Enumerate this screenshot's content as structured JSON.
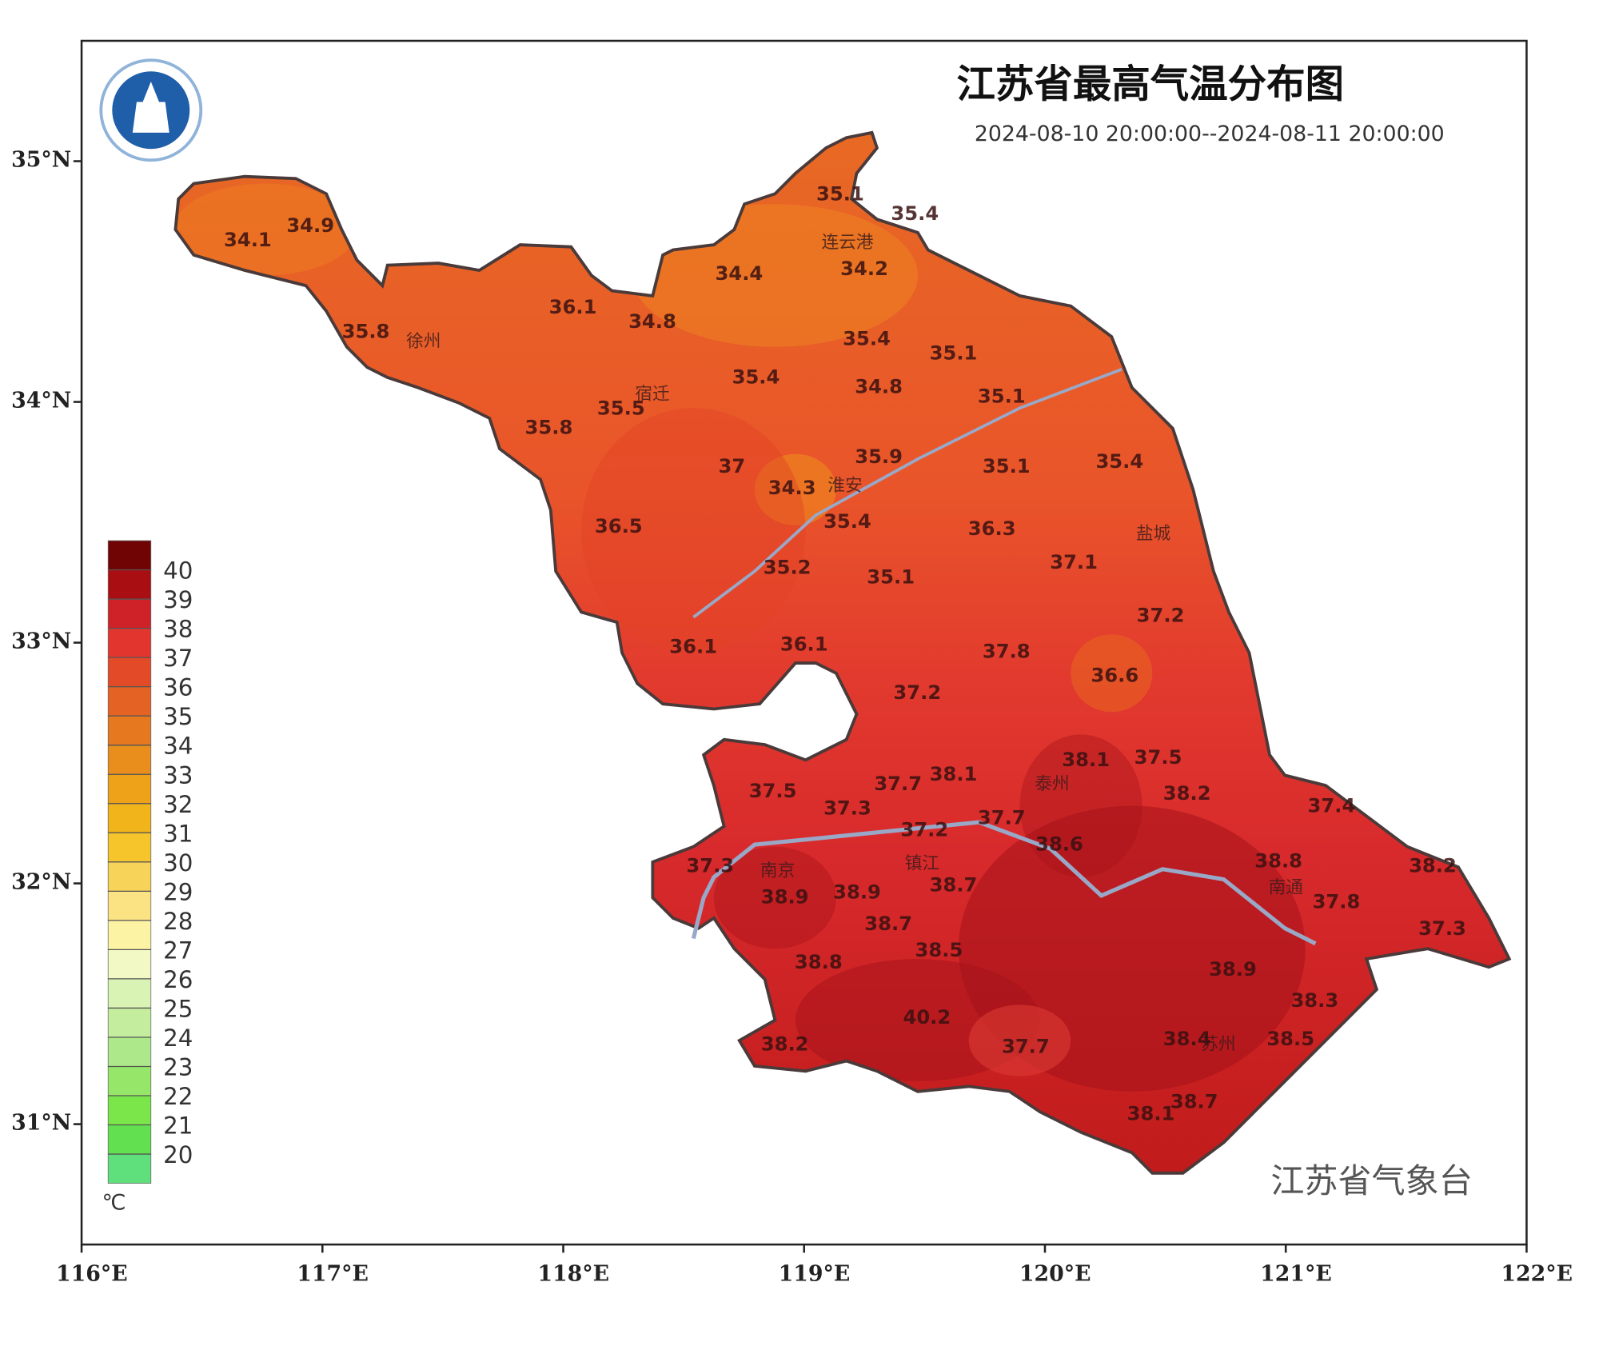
{
  "chart_data": {
    "type": "map",
    "title": "江苏省最高气温分布图",
    "subtitle": "2024-08-10 20:00:00--2024-08-11 20:00:00",
    "credit": "江苏省气象台",
    "xlim": [
      116,
      122
    ],
    "ylim": [
      30.5,
      35.5
    ],
    "xticks": [
      {
        "value": 116,
        "label": "116°E"
      },
      {
        "value": 117,
        "label": "117°E"
      },
      {
        "value": 118,
        "label": "118°E"
      },
      {
        "value": 119,
        "label": "119°E"
      },
      {
        "value": 120,
        "label": "120°E"
      },
      {
        "value": 121,
        "label": "121°E"
      },
      {
        "value": 122,
        "label": "122°E"
      }
    ],
    "yticks": [
      {
        "value": 31,
        "label": "31°N"
      },
      {
        "value": 32,
        "label": "32°N"
      },
      {
        "value": 33,
        "label": "33°N"
      },
      {
        "value": 34,
        "label": "34°N"
      },
      {
        "value": 35,
        "label": "35°N"
      }
    ],
    "colorbar": {
      "ticks": [
        20,
        21,
        22,
        23,
        24,
        25,
        26,
        27,
        28,
        29,
        30,
        31,
        32,
        33,
        34,
        35,
        36,
        37,
        38,
        39,
        40
      ],
      "colors": [
        "#5fe07c",
        "#62e050",
        "#7ae64a",
        "#96e66a",
        "#ade98a",
        "#c4ee9e",
        "#d8f3b4",
        "#f2f9c4",
        "#fdf3a4",
        "#fbe384",
        "#f8d35a",
        "#f6c52c",
        "#f1b41a",
        "#eda219",
        "#e98e1c",
        "#e6781f",
        "#e46223",
        "#e34a27",
        "#e2352d",
        "#cf2128",
        "#a80e12",
        "#700404"
      ],
      "unit": "℃"
    },
    "stations": {
      "x": [
        119.15,
        119.46,
        116.69,
        116.95,
        118.73,
        119.25,
        118.04,
        118.37,
        117.18,
        119.26,
        119.62,
        118.8,
        119.31,
        118.24,
        119.82,
        117.94,
        118.7,
        118.95,
        119.31,
        119.84,
        120.31,
        118.23,
        119.18,
        119.78,
        120.12,
        118.93,
        119.36,
        120.48,
        118.54,
        119.0,
        119.84,
        120.29,
        119.47,
        120.17,
        120.47,
        119.62,
        118.87,
        119.39,
        120.59,
        119.18,
        119.82,
        121.19,
        119.5,
        120.06,
        118.61,
        121.61,
        120.97,
        118.92,
        119.22,
        119.62,
        121.21,
        119.35,
        121.65,
        119.56,
        119.06,
        120.78,
        121.12,
        119.51,
        119.92,
        118.92,
        120.62,
        120.44,
        120.59,
        121.02
      ],
      "y": [
        34.86,
        34.78,
        34.67,
        34.73,
        34.53,
        34.55,
        34.39,
        34.33,
        34.29,
        34.26,
        34.2,
        34.1,
        34.06,
        33.97,
        34.02,
        33.89,
        33.73,
        33.64,
        33.77,
        33.73,
        33.75,
        33.48,
        33.5,
        33.47,
        33.33,
        33.31,
        33.27,
        33.11,
        32.98,
        32.99,
        32.96,
        32.86,
        32.79,
        32.51,
        32.52,
        32.45,
        32.38,
        32.41,
        32.37,
        32.31,
        32.27,
        32.32,
        32.22,
        32.16,
        32.07,
        32.07,
        32.09,
        31.94,
        31.96,
        31.99,
        31.92,
        31.83,
        31.81,
        31.72,
        31.67,
        31.64,
        31.51,
        31.44,
        31.32,
        31.33,
        31.09,
        31.04,
        31.35,
        31.35
      ],
      "values": [
        35.1,
        35.4,
        34.1,
        34.9,
        34.4,
        34.2,
        36.1,
        34.8,
        35.8,
        35.4,
        35.1,
        35.4,
        34.8,
        35.5,
        35.1,
        35.8,
        37.0,
        34.3,
        35.9,
        35.1,
        35.4,
        36.5,
        35.4,
        36.3,
        37.1,
        35.2,
        35.1,
        37.2,
        36.1,
        36.1,
        37.8,
        36.6,
        37.2,
        38.1,
        37.5,
        38.1,
        37.5,
        37.7,
        38.2,
        37.3,
        37.7,
        37.4,
        37.2,
        38.6,
        37.3,
        38.2,
        38.8,
        38.9,
        38.9,
        38.7,
        37.8,
        38.7,
        37.3,
        38.5,
        38.8,
        38.9,
        38.3,
        40.2,
        37.7,
        38.2,
        38.7,
        38.1,
        38.4,
        38.5
      ]
    },
    "cities": {
      "names": [
        "连云港",
        "徐州",
        "宿迁",
        "淮安",
        "盐城",
        "泰州",
        "镇江",
        "南京",
        "南通",
        "苏州"
      ],
      "x": [
        119.18,
        117.42,
        118.37,
        119.17,
        120.45,
        120.03,
        119.49,
        118.89,
        121.0,
        120.72
      ],
      "y": [
        34.66,
        34.25,
        34.03,
        33.65,
        33.45,
        32.41,
        32.08,
        32.05,
        31.98,
        31.33
      ]
    }
  }
}
